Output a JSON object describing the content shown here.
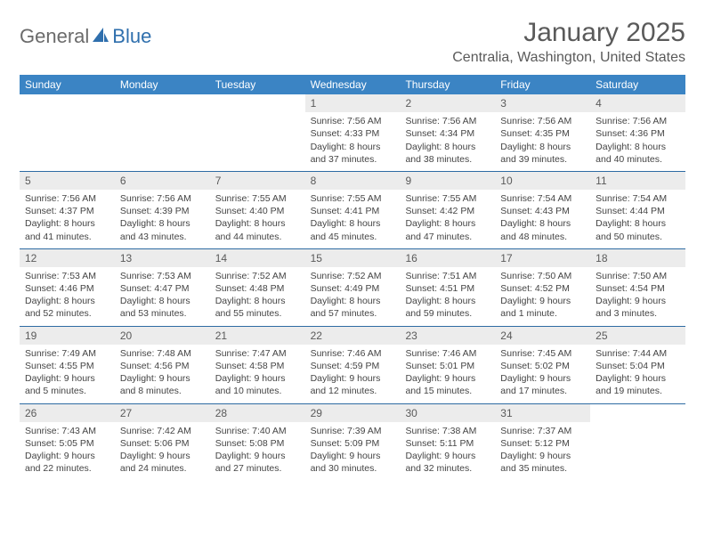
{
  "logo": {
    "text1": "General",
    "text2": "Blue",
    "icon_color": "#2f6fad"
  },
  "title": "January 2025",
  "location": "Centralia, Washington, United States",
  "colors": {
    "header_bg": "#3b84c4",
    "daynum_bg": "#ececec",
    "row_border": "#2e6ba3",
    "text": "#444444",
    "title_text": "#5a5a5a"
  },
  "days_of_week": [
    "Sunday",
    "Monday",
    "Tuesday",
    "Wednesday",
    "Thursday",
    "Friday",
    "Saturday"
  ],
  "weeks": [
    [
      null,
      null,
      null,
      {
        "n": "1",
        "sr": "7:56 AM",
        "ss": "4:33 PM",
        "dl": "8 hours and 37 minutes."
      },
      {
        "n": "2",
        "sr": "7:56 AM",
        "ss": "4:34 PM",
        "dl": "8 hours and 38 minutes."
      },
      {
        "n": "3",
        "sr": "7:56 AM",
        "ss": "4:35 PM",
        "dl": "8 hours and 39 minutes."
      },
      {
        "n": "4",
        "sr": "7:56 AM",
        "ss": "4:36 PM",
        "dl": "8 hours and 40 minutes."
      }
    ],
    [
      {
        "n": "5",
        "sr": "7:56 AM",
        "ss": "4:37 PM",
        "dl": "8 hours and 41 minutes."
      },
      {
        "n": "6",
        "sr": "7:56 AM",
        "ss": "4:39 PM",
        "dl": "8 hours and 43 minutes."
      },
      {
        "n": "7",
        "sr": "7:55 AM",
        "ss": "4:40 PM",
        "dl": "8 hours and 44 minutes."
      },
      {
        "n": "8",
        "sr": "7:55 AM",
        "ss": "4:41 PM",
        "dl": "8 hours and 45 minutes."
      },
      {
        "n": "9",
        "sr": "7:55 AM",
        "ss": "4:42 PM",
        "dl": "8 hours and 47 minutes."
      },
      {
        "n": "10",
        "sr": "7:54 AM",
        "ss": "4:43 PM",
        "dl": "8 hours and 48 minutes."
      },
      {
        "n": "11",
        "sr": "7:54 AM",
        "ss": "4:44 PM",
        "dl": "8 hours and 50 minutes."
      }
    ],
    [
      {
        "n": "12",
        "sr": "7:53 AM",
        "ss": "4:46 PM",
        "dl": "8 hours and 52 minutes."
      },
      {
        "n": "13",
        "sr": "7:53 AM",
        "ss": "4:47 PM",
        "dl": "8 hours and 53 minutes."
      },
      {
        "n": "14",
        "sr": "7:52 AM",
        "ss": "4:48 PM",
        "dl": "8 hours and 55 minutes."
      },
      {
        "n": "15",
        "sr": "7:52 AM",
        "ss": "4:49 PM",
        "dl": "8 hours and 57 minutes."
      },
      {
        "n": "16",
        "sr": "7:51 AM",
        "ss": "4:51 PM",
        "dl": "8 hours and 59 minutes."
      },
      {
        "n": "17",
        "sr": "7:50 AM",
        "ss": "4:52 PM",
        "dl": "9 hours and 1 minute."
      },
      {
        "n": "18",
        "sr": "7:50 AM",
        "ss": "4:54 PM",
        "dl": "9 hours and 3 minutes."
      }
    ],
    [
      {
        "n": "19",
        "sr": "7:49 AM",
        "ss": "4:55 PM",
        "dl": "9 hours and 5 minutes."
      },
      {
        "n": "20",
        "sr": "7:48 AM",
        "ss": "4:56 PM",
        "dl": "9 hours and 8 minutes."
      },
      {
        "n": "21",
        "sr": "7:47 AM",
        "ss": "4:58 PM",
        "dl": "9 hours and 10 minutes."
      },
      {
        "n": "22",
        "sr": "7:46 AM",
        "ss": "4:59 PM",
        "dl": "9 hours and 12 minutes."
      },
      {
        "n": "23",
        "sr": "7:46 AM",
        "ss": "5:01 PM",
        "dl": "9 hours and 15 minutes."
      },
      {
        "n": "24",
        "sr": "7:45 AM",
        "ss": "5:02 PM",
        "dl": "9 hours and 17 minutes."
      },
      {
        "n": "25",
        "sr": "7:44 AM",
        "ss": "5:04 PM",
        "dl": "9 hours and 19 minutes."
      }
    ],
    [
      {
        "n": "26",
        "sr": "7:43 AM",
        "ss": "5:05 PM",
        "dl": "9 hours and 22 minutes."
      },
      {
        "n": "27",
        "sr": "7:42 AM",
        "ss": "5:06 PM",
        "dl": "9 hours and 24 minutes."
      },
      {
        "n": "28",
        "sr": "7:40 AM",
        "ss": "5:08 PM",
        "dl": "9 hours and 27 minutes."
      },
      {
        "n": "29",
        "sr": "7:39 AM",
        "ss": "5:09 PM",
        "dl": "9 hours and 30 minutes."
      },
      {
        "n": "30",
        "sr": "7:38 AM",
        "ss": "5:11 PM",
        "dl": "9 hours and 32 minutes."
      },
      {
        "n": "31",
        "sr": "7:37 AM",
        "ss": "5:12 PM",
        "dl": "9 hours and 35 minutes."
      },
      null
    ]
  ],
  "labels": {
    "sunrise": "Sunrise: ",
    "sunset": "Sunset: ",
    "daylight": "Daylight: "
  }
}
